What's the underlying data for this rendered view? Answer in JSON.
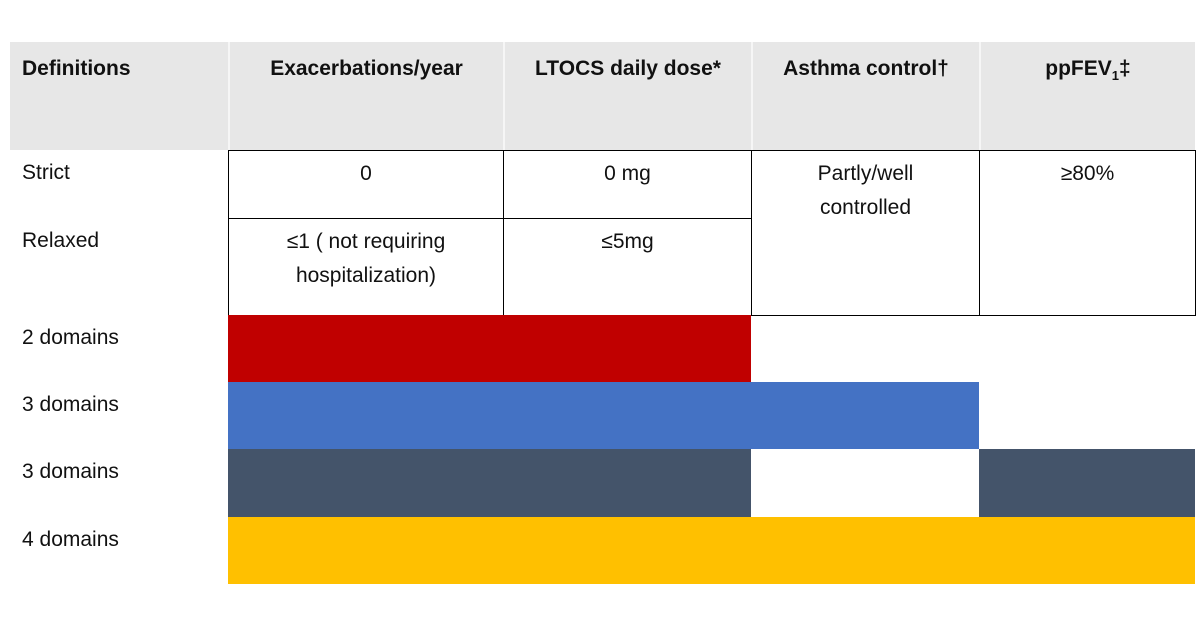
{
  "header": [
    "Definitions",
    "Exacerbations/year",
    "LTOCS daily dose*",
    "Asthma control†",
    {
      "base": "ppFEV",
      "subscript": "1",
      "suffix": "‡"
    }
  ],
  "rows": [
    [
      "Strict",
      "0",
      "0 mg",
      "Partly/well controlled",
      "≥80%"
    ],
    [
      "Relaxed",
      "≤1 ( not requiring hospitalization)",
      "≤5mg"
    ]
  ],
  "domains": [
    "2 domains",
    "3 domains",
    "3 domains",
    "4 domains"
  ]
}
